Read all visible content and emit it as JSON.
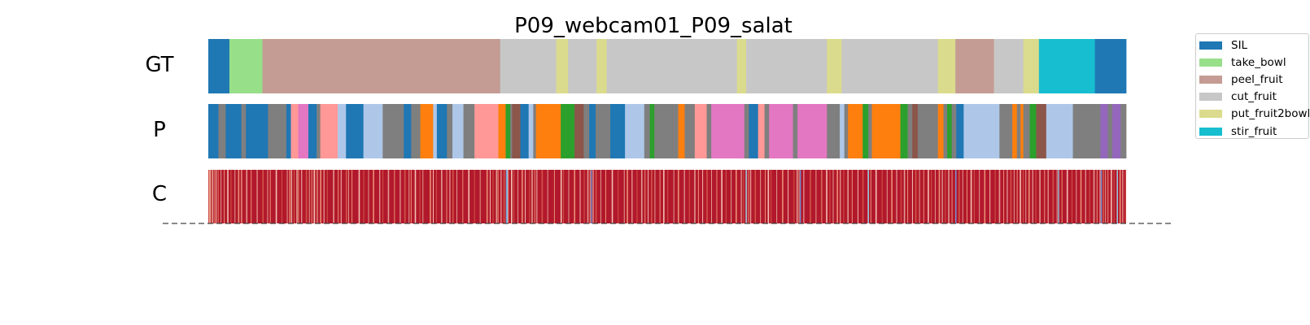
{
  "chart_data": {
    "type": "segmentation",
    "title": "P09_webcam01_P09_salat",
    "row_labels": [
      "GT",
      "P",
      "C"
    ],
    "x_range": [
      0,
      1000
    ],
    "legend": {
      "placement": "right",
      "entries": [
        {
          "label": "SIL",
          "color": "#1f77b4"
        },
        {
          "label": "take_bowl",
          "color": "#98df8a"
        },
        {
          "label": "peel_fruit",
          "color": "#c49c94"
        },
        {
          "label": "cut_fruit",
          "color": "#c7c7c7"
        },
        {
          "label": "put_fruit2bowl",
          "color": "#dbdb8d"
        },
        {
          "label": "stir_fruit",
          "color": "#17becf"
        }
      ]
    },
    "gt_segments": [
      {
        "start": 0,
        "end": 23,
        "color": "#1f77b4"
      },
      {
        "start": 23,
        "end": 59,
        "color": "#98df8a"
      },
      {
        "start": 59,
        "end": 318,
        "color": "#c49c94"
      },
      {
        "start": 318,
        "end": 379,
        "color": "#c7c7c7"
      },
      {
        "start": 379,
        "end": 392,
        "color": "#dbdb8d"
      },
      {
        "start": 392,
        "end": 423,
        "color": "#c7c7c7"
      },
      {
        "start": 423,
        "end": 434,
        "color": "#dbdb8d"
      },
      {
        "start": 434,
        "end": 576,
        "color": "#c7c7c7"
      },
      {
        "start": 576,
        "end": 586,
        "color": "#dbdb8d"
      },
      {
        "start": 586,
        "end": 674,
        "color": "#c7c7c7"
      },
      {
        "start": 674,
        "end": 690,
        "color": "#dbdb8d"
      },
      {
        "start": 690,
        "end": 795,
        "color": "#c7c7c7"
      },
      {
        "start": 795,
        "end": 814,
        "color": "#dbdb8d"
      },
      {
        "start": 814,
        "end": 856,
        "color": "#c49c94"
      },
      {
        "start": 856,
        "end": 888,
        "color": "#c7c7c7"
      },
      {
        "start": 888,
        "end": 905,
        "color": "#dbdb8d"
      },
      {
        "start": 905,
        "end": 966,
        "color": "#17becf"
      },
      {
        "start": 966,
        "end": 1000,
        "color": "#1f77b4"
      }
    ],
    "pred_segments": [
      {
        "start": 0,
        "end": 11,
        "color": "#1f77b4"
      },
      {
        "start": 11,
        "end": 19,
        "color": "#7f7f7f"
      },
      {
        "start": 19,
        "end": 36,
        "color": "#1f77b4"
      },
      {
        "start": 36,
        "end": 41,
        "color": "#7f7f7f"
      },
      {
        "start": 41,
        "end": 65,
        "color": "#1f77b4"
      },
      {
        "start": 65,
        "end": 85,
        "color": "#7f7f7f"
      },
      {
        "start": 85,
        "end": 90,
        "color": "#1f77b4"
      },
      {
        "start": 90,
        "end": 98,
        "color": "#ff9896"
      },
      {
        "start": 98,
        "end": 109,
        "color": "#e377c2"
      },
      {
        "start": 109,
        "end": 118,
        "color": "#1f77b4"
      },
      {
        "start": 118,
        "end": 122,
        "color": "#7f7f7f"
      },
      {
        "start": 122,
        "end": 141,
        "color": "#ff9896"
      },
      {
        "start": 141,
        "end": 150,
        "color": "#aec7e8"
      },
      {
        "start": 150,
        "end": 169,
        "color": "#1f77b4"
      },
      {
        "start": 169,
        "end": 190,
        "color": "#aec7e8"
      },
      {
        "start": 190,
        "end": 213,
        "color": "#7f7f7f"
      },
      {
        "start": 213,
        "end": 221,
        "color": "#1f77b4"
      },
      {
        "start": 221,
        "end": 231,
        "color": "#7f7f7f"
      },
      {
        "start": 231,
        "end": 245,
        "color": "#ff7f0e"
      },
      {
        "start": 245,
        "end": 249,
        "color": "#aec7e8"
      },
      {
        "start": 249,
        "end": 260,
        "color": "#1f77b4"
      },
      {
        "start": 260,
        "end": 266,
        "color": "#7f7f7f"
      },
      {
        "start": 266,
        "end": 278,
        "color": "#aec7e8"
      },
      {
        "start": 278,
        "end": 290,
        "color": "#7f7f7f"
      },
      {
        "start": 290,
        "end": 316,
        "color": "#ff9896"
      },
      {
        "start": 316,
        "end": 324,
        "color": "#ff7f0e"
      },
      {
        "start": 324,
        "end": 329,
        "color": "#2ca02c"
      },
      {
        "start": 329,
        "end": 331,
        "color": "#7f7f7f"
      },
      {
        "start": 331,
        "end": 340,
        "color": "#8c564b"
      },
      {
        "start": 340,
        "end": 349,
        "color": "#1f77b4"
      },
      {
        "start": 349,
        "end": 354,
        "color": "#aec7e8"
      },
      {
        "start": 354,
        "end": 357,
        "color": "#7f7f7f"
      },
      {
        "start": 357,
        "end": 384,
        "color": "#ff7f0e"
      },
      {
        "start": 384,
        "end": 399,
        "color": "#2ca02c"
      },
      {
        "start": 399,
        "end": 409,
        "color": "#8c564b"
      },
      {
        "start": 409,
        "end": 415,
        "color": "#7f7f7f"
      },
      {
        "start": 415,
        "end": 422,
        "color": "#1f77b4"
      },
      {
        "start": 422,
        "end": 438,
        "color": "#7f7f7f"
      },
      {
        "start": 438,
        "end": 454,
        "color": "#1f77b4"
      },
      {
        "start": 454,
        "end": 475,
        "color": "#aec7e8"
      },
      {
        "start": 475,
        "end": 481,
        "color": "#7f7f7f"
      },
      {
        "start": 481,
        "end": 486,
        "color": "#2ca02c"
      },
      {
        "start": 486,
        "end": 493,
        "color": "#7f7f7f"
      },
      {
        "start": 493,
        "end": 512,
        "color": "#7f7f7f"
      },
      {
        "start": 512,
        "end": 519,
        "color": "#ff7f0e"
      },
      {
        "start": 519,
        "end": 530,
        "color": "#7f7f7f"
      },
      {
        "start": 530,
        "end": 543,
        "color": "#ff9896"
      },
      {
        "start": 543,
        "end": 548,
        "color": "#7f7f7f"
      },
      {
        "start": 548,
        "end": 584,
        "color": "#e377c2"
      },
      {
        "start": 584,
        "end": 589,
        "color": "#7f7f7f"
      },
      {
        "start": 589,
        "end": 599,
        "color": "#1f77b4"
      },
      {
        "start": 599,
        "end": 606,
        "color": "#ff9896"
      },
      {
        "start": 606,
        "end": 611,
        "color": "#7f7f7f"
      },
      {
        "start": 611,
        "end": 637,
        "color": "#e377c2"
      },
      {
        "start": 637,
        "end": 642,
        "color": "#7f7f7f"
      },
      {
        "start": 642,
        "end": 674,
        "color": "#e377c2"
      },
      {
        "start": 674,
        "end": 688,
        "color": "#7f7f7f"
      },
      {
        "start": 688,
        "end": 693,
        "color": "#aec7e8"
      },
      {
        "start": 693,
        "end": 697,
        "color": "#7f7f7f"
      },
      {
        "start": 697,
        "end": 713,
        "color": "#ff7f0e"
      },
      {
        "start": 713,
        "end": 719,
        "color": "#2ca02c"
      },
      {
        "start": 719,
        "end": 723,
        "color": "#7f7f7f"
      },
      {
        "start": 723,
        "end": 754,
        "color": "#ff7f0e"
      },
      {
        "start": 754,
        "end": 762,
        "color": "#2ca02c"
      },
      {
        "start": 762,
        "end": 767,
        "color": "#7f7f7f"
      },
      {
        "start": 767,
        "end": 773,
        "color": "#8c564b"
      },
      {
        "start": 773,
        "end": 795,
        "color": "#7f7f7f"
      },
      {
        "start": 795,
        "end": 801,
        "color": "#ff7f0e"
      },
      {
        "start": 801,
        "end": 805,
        "color": "#7f7f7f"
      },
      {
        "start": 805,
        "end": 810,
        "color": "#2ca02c"
      },
      {
        "start": 810,
        "end": 815,
        "color": "#7f7f7f"
      },
      {
        "start": 815,
        "end": 823,
        "color": "#1f77b4"
      },
      {
        "start": 823,
        "end": 862,
        "color": "#aec7e8"
      },
      {
        "start": 862,
        "end": 876,
        "color": "#7f7f7f"
      },
      {
        "start": 876,
        "end": 881,
        "color": "#ff7f0e"
      },
      {
        "start": 881,
        "end": 885,
        "color": "#7f7f7f"
      },
      {
        "start": 885,
        "end": 888,
        "color": "#ff7f0e"
      },
      {
        "start": 888,
        "end": 895,
        "color": "#7f7f7f"
      },
      {
        "start": 895,
        "end": 902,
        "color": "#2ca02c"
      },
      {
        "start": 902,
        "end": 913,
        "color": "#8c564b"
      },
      {
        "start": 913,
        "end": 942,
        "color": "#aec7e8"
      },
      {
        "start": 942,
        "end": 972,
        "color": "#7f7f7f"
      },
      {
        "start": 972,
        "end": 980,
        "color": "#9467bd"
      },
      {
        "start": 980,
        "end": 985,
        "color": "#7f7f7f"
      },
      {
        "start": 985,
        "end": 994,
        "color": "#9467bd"
      },
      {
        "start": 994,
        "end": 1000,
        "color": "#7f7f7f"
      }
    ],
    "confidence_low_marks": [
      0.5,
      1.6,
      3.2,
      4.1,
      6.6,
      8.3,
      10.2,
      13.4,
      16.9,
      20.6,
      24.3,
      28.6,
      32.4,
      35.8,
      36.4,
      41.2,
      46.3,
      52.8,
      58.9,
      64.2,
      67.1,
      73.4,
      79.8,
      85.6,
      88.3,
      90.4,
      93.1,
      95.9,
      97.8,
      101.3,
      106.2,
      109.7,
      112.3,
      114.8,
      117.3,
      118.6,
      121.8,
      125.6,
      129.2,
      135.9,
      141.1,
      144.3,
      149.8,
      152.4,
      156.1,
      163.7,
      168.9,
      174.2,
      179.3,
      186.4,
      189.8,
      195.6,
      202.4,
      208.7,
      213.5,
      218.3,
      220.6,
      224.9,
      230.1,
      233.4,
      241.2,
      244.7,
      248.1,
      253.6,
      259.3,
      262.8,
      265.9,
      270.4,
      276.9,
      283.2,
      289.6,
      295.8,
      303.1,
      306.7,
      309.8,
      313.4,
      315.3,
      318.6,
      321.6,
      324.2,
      326.4,
      329.8,
      332.5,
      336.9,
      341.3,
      344.9,
      349.6,
      352.1,
      355.3,
      357.6,
      363.1,
      369.4,
      376.7,
      383.8,
      386.6,
      392.3,
      398.4,
      404.7,
      409.2,
      412.9,
      415.6,
      418.9,
      421.8,
      427.2,
      432.6,
      439.5,
      446.1,
      452.8,
      455.9,
      461.3,
      466.7,
      471.6,
      475.4,
      478.8,
      482.3,
      486.2,
      491.7,
      495.6,
      500.2,
      506.8,
      511.5,
      518.3,
      523.7,
      529.4,
      533.6,
      538.2,
      542.7,
      547.9,
      553.6,
      558.8,
      563.7,
      569.2,
      574.5,
      580.3,
      582.8,
      585.6,
      588.4,
      590.6,
      595.3,
      601.2,
      606.4,
      609.5,
      612.8,
      618.9,
      625.1,
      631.3,
      637.7,
      640.9,
      643.2,
      648.4,
      655.3,
      661.7,
      667.9,
      673.1,
      676.8,
      680.4,
      684.7,
      688.2,
      691.9,
      696.3,
      701.1,
      707.4,
      712.6,
      718.3,
      721.5,
      726.9,
      733.8,
      739.2,
      744.1,
      749.6,
      754.3,
      757.8,
      761.6,
      766.8,
      770.2,
      774.5,
      779.1,
      783.8,
      787.4,
      791.6,
      795.8,
      799.3,
      802.6,
      806.1,
      809.9,
      813.8,
      817.4,
      821.6,
      826.2,
      830.5,
      834.1,
      839.7,
      845.3,
      851.2,
      856.9,
      861.4,
      866.2,
      870.1,
      873.8,
      877.6,
      880.9,
      884.1,
      887.5,
      890.3,
      893.6,
      897.8,
      901.2,
      905.4,
      910.7,
      914.6,
      919.8,
      924.3,
      929.7,
      935.2,
      940.6,
      945.3,
      950.1,
      955.4,
      959.8,
      964.3,
      967.9,
      971.2,
      974.6,
      977.1,
      979.8,
      983.2,
      986.4,
      989.7,
      992.8,
      995.9,
      998.7
    ],
    "confidence_blue_marks": [
      324.3,
      325.1,
      416.8,
      585.4,
      644.4,
      718.6,
      813.9,
      925.8,
      972.4,
      989.9
    ],
    "dashed_baseline": true,
    "grid": false
  }
}
